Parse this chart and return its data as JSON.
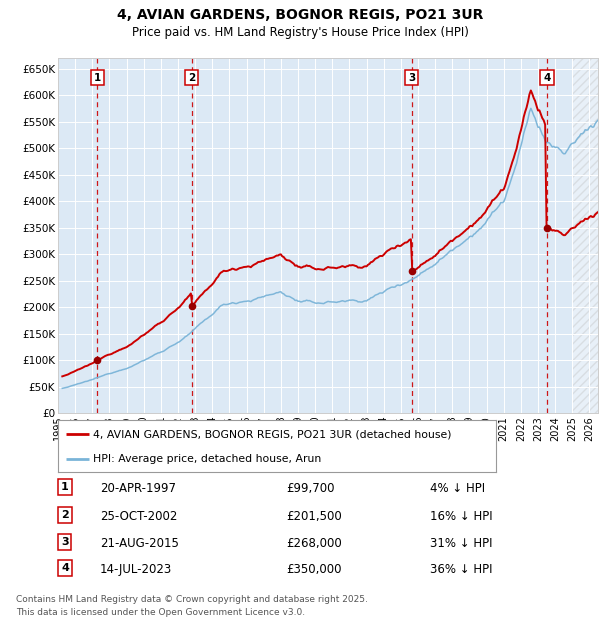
{
  "title": "4, AVIAN GARDENS, BOGNOR REGIS, PO21 3UR",
  "subtitle": "Price paid vs. HM Land Registry's House Price Index (HPI)",
  "bg_color": "#dce9f5",
  "hpi_color": "#7ab4d8",
  "price_color": "#cc0000",
  "sale_marker_color": "#990000",
  "vline_color": "#cc0000",
  "sale_dates_float": [
    1997.3,
    2002.81,
    2015.63,
    2023.53
  ],
  "sale_prices": [
    99700,
    201500,
    268000,
    350000
  ],
  "sale_labels": [
    "1",
    "2",
    "3",
    "4"
  ],
  "sale_info": [
    {
      "num": "1",
      "date": "20-APR-1997",
      "price": "£99,700",
      "pct": "4% ↓ HPI"
    },
    {
      "num": "2",
      "date": "25-OCT-2002",
      "price": "£201,500",
      "pct": "16% ↓ HPI"
    },
    {
      "num": "3",
      "date": "21-AUG-2015",
      "price": "£268,000",
      "pct": "31% ↓ HPI"
    },
    {
      "num": "4",
      "date": "14-JUL-2023",
      "price": "£350,000",
      "pct": "36% ↓ HPI"
    }
  ],
  "ylim": [
    0,
    670000
  ],
  "yticks": [
    0,
    50000,
    100000,
    150000,
    200000,
    250000,
    300000,
    350000,
    400000,
    450000,
    500000,
    550000,
    600000,
    650000
  ],
  "ytick_labels": [
    "£0",
    "£50K",
    "£100K",
    "£150K",
    "£200K",
    "£250K",
    "£300K",
    "£350K",
    "£400K",
    "£450K",
    "£500K",
    "£550K",
    "£600K",
    "£650K"
  ],
  "xstart": 1995.25,
  "xend": 2026.5,
  "legend_address": "4, AVIAN GARDENS, BOGNOR REGIS, PO21 3UR (detached house)",
  "legend_hpi": "HPI: Average price, detached house, Arun",
  "footer": "Contains HM Land Registry data © Crown copyright and database right 2025.\nThis data is licensed under the Open Government Licence v3.0."
}
